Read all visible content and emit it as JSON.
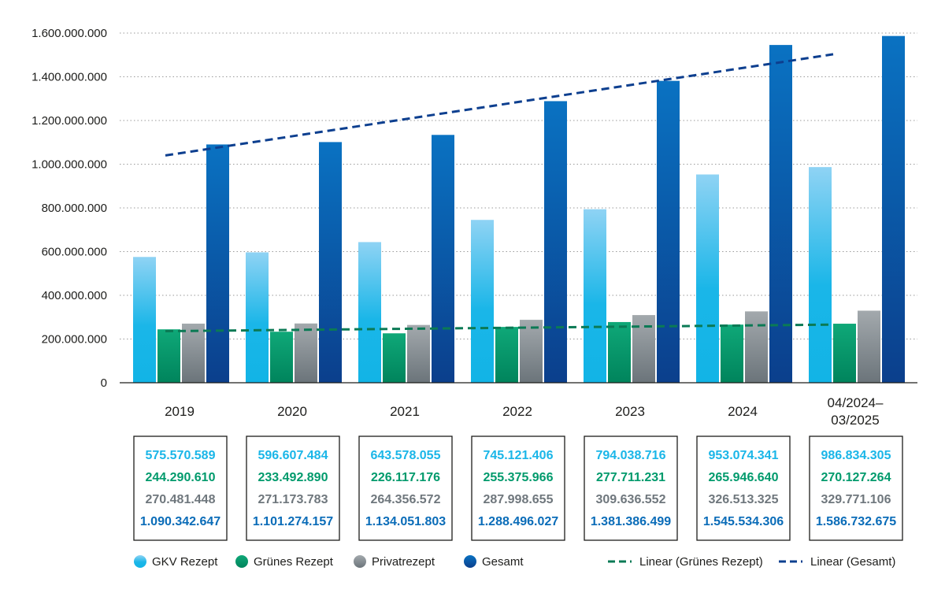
{
  "chart_data": {
    "type": "bar",
    "categories": [
      "2019",
      "2020",
      "2021",
      "2022",
      "2023",
      "2024",
      "04/2024–03/2025"
    ],
    "category_lines": [
      [
        "2019"
      ],
      [
        "2020"
      ],
      [
        "2021"
      ],
      [
        "2022"
      ],
      [
        "2023"
      ],
      [
        "2024"
      ],
      [
        "04/2024–",
        "03/2025"
      ]
    ],
    "series": [
      {
        "name": "GKV Rezept",
        "color": "#1ab6e8",
        "values": [
          575570589,
          596607484,
          643578055,
          745121406,
          794038716,
          953074341,
          986834305
        ]
      },
      {
        "name": "Grünes Rezept",
        "color": "#009a6c",
        "values": [
          244290610,
          233492890,
          226117176,
          255375966,
          277711231,
          265946640,
          270127264
        ]
      },
      {
        "name": "Privatrezept",
        "color": "#7d868c",
        "values": [
          270481448,
          271173783,
          264356572,
          287998655,
          309636552,
          326513325,
          329771106
        ]
      },
      {
        "name": "Gesamt",
        "color": "#0a5fa8",
        "values": [
          1090342647,
          1101274157,
          1134051803,
          1288496027,
          1381386499,
          1545534306,
          1586732675
        ]
      }
    ],
    "value_labels": [
      [
        "575.570.589",
        "244.290.610",
        "270.481.448",
        "1.090.342.647"
      ],
      [
        "596.607.484",
        "233.492.890",
        "271.173.783",
        "1.101.274.157"
      ],
      [
        "643.578.055",
        "226.117.176",
        "264.356.572",
        "1.134.051.803"
      ],
      [
        "745.121.406",
        "255.375.966",
        "287.998.655",
        "1.288.496.027"
      ],
      [
        "794.038.716",
        "277.711.231",
        "309.636.552",
        "1.381.386.499"
      ],
      [
        "953.074.341",
        "265.946.640",
        "326.513.325",
        "1.545.534.306"
      ],
      [
        "986.834.305",
        "270.127.264",
        "329.771.106",
        "1.586.732.675"
      ]
    ],
    "value_label_colors": [
      "#1ab6e8",
      "#009a6c",
      "#6f777d",
      "#0a6cb8"
    ],
    "trendlines": [
      {
        "name": "Linear (Grünes Rezept)",
        "color": "#0b7a55",
        "start": 236000000,
        "end": 266000000
      },
      {
        "name": "Linear (Gesamt)",
        "color": "#0d3f8f",
        "start": 1040000000,
        "end": 1503000000
      }
    ],
    "ylim": [
      0,
      1600000000
    ],
    "yticks": [
      0,
      200000000,
      400000000,
      600000000,
      800000000,
      1000000000,
      1200000000,
      1400000000,
      1600000000
    ],
    "ytick_labels": [
      "0",
      "200.000.000",
      "400.000.000",
      "600.000.000",
      "800.000.000",
      "1.000.000.000",
      "1.200.000.000",
      "1.400.000.000",
      "1.600.000.000"
    ],
    "grid": true,
    "legend_position": "bottom",
    "title": "",
    "xlabel": "",
    "ylabel": ""
  }
}
